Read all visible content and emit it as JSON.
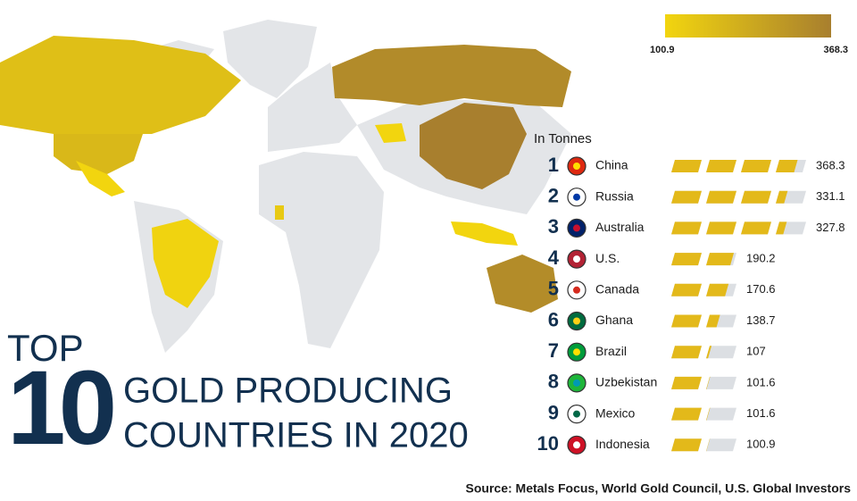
{
  "legend": {
    "min": 100.9,
    "max": 368.3
  },
  "unit_label": "In Tonnes",
  "title": {
    "top": "TOP",
    "number": "10",
    "line1": "GOLD PRODUCING",
    "line2": "COUNTRIES IN 2020"
  },
  "rows": [
    {
      "rank": 1,
      "country": "China",
      "value": 368.3
    },
    {
      "rank": 2,
      "country": "Russia",
      "value": 331.1
    },
    {
      "rank": 3,
      "country": "Australia",
      "value": 327.8
    },
    {
      "rank": 4,
      "country": "U.S.",
      "value": 190.2
    },
    {
      "rank": 5,
      "country": "Canada",
      "value": 170.6
    },
    {
      "rank": 6,
      "country": "Ghana",
      "value": 138.7
    },
    {
      "rank": 7,
      "country": "Brazil",
      "value": 107.0
    },
    {
      "rank": 8,
      "country": "Uzbekistan",
      "value": 101.6
    },
    {
      "rank": 9,
      "country": "Mexico",
      "value": 101.6
    },
    {
      "rank": 10,
      "country": "Indonesia",
      "value": 100.9
    }
  ],
  "source": "Source: Metals Focus, World Gold Council, U.S. Global Investors"
}
